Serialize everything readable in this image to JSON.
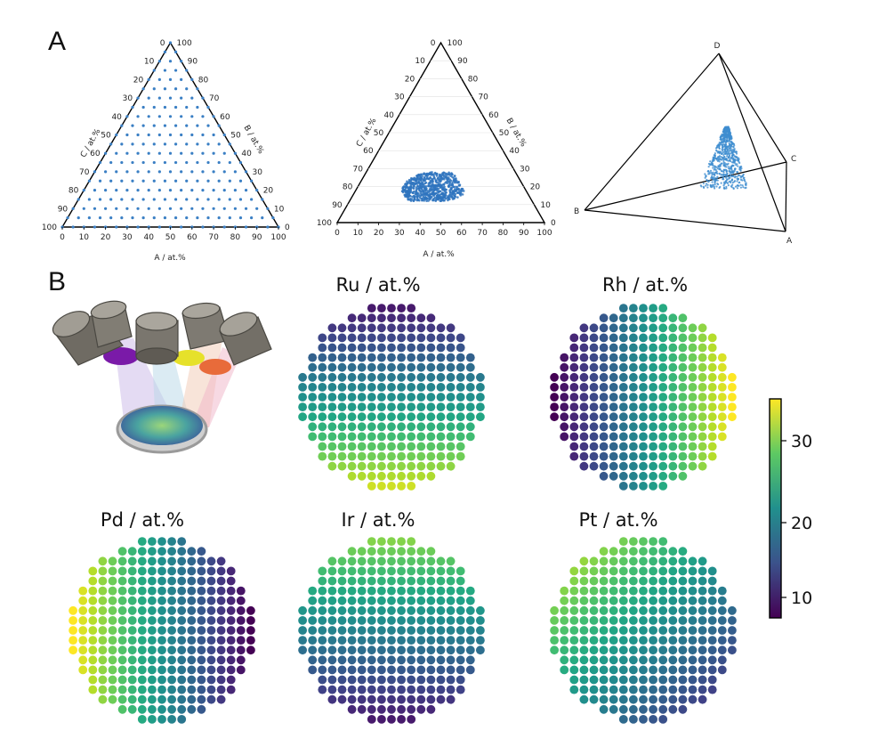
{
  "panels": {
    "a": "A",
    "b": "B"
  },
  "chart_data": [
    {
      "type": "scatter",
      "subtype": "ternary",
      "panel": "A",
      "axes": {
        "A": "A / at.%",
        "B": "B / at.%",
        "C": "C / at.%"
      },
      "ticks": [
        "0",
        "10",
        "20",
        "30",
        "40",
        "50",
        "60",
        "70",
        "80",
        "90",
        "100"
      ],
      "grid_step": 5,
      "marker_color": "#3a7fc4",
      "description_points": "full composition grid in 5 at.% steps"
    },
    {
      "type": "scatter",
      "subtype": "ternary",
      "panel": "A",
      "axes": {
        "A": "A / at.%",
        "B": "B / at.%",
        "C": "C / at.%"
      },
      "ticks": [
        "0",
        "10",
        "20",
        "30",
        "40",
        "50",
        "60",
        "70",
        "80",
        "90",
        "100"
      ],
      "marker_color": "#2f74be",
      "cluster": {
        "A_range": [
          22,
          55
        ],
        "B_range": [
          12,
          28
        ],
        "C_range": [
          30,
          60
        ]
      }
    },
    {
      "type": "scatter",
      "subtype": "tetrahedron",
      "panel": "A",
      "vertices": [
        "A",
        "B",
        "C",
        "D"
      ],
      "marker_color": "#3f8dd0"
    },
    {
      "type": "heatmap",
      "subtype": "wafer-map",
      "panel": "B",
      "colormap": "viridis",
      "colorbar": {
        "range": [
          8,
          35
        ],
        "ticks": [
          "10",
          "20",
          "30"
        ]
      },
      "maps": [
        {
          "title": "Ru / at.%",
          "gradient": "bottom-high",
          "min": 10,
          "max": 33
        },
        {
          "title": "Rh / at.%",
          "gradient": "right-high",
          "min": 8,
          "max": 35
        },
        {
          "title": "Pd / at.%",
          "gradient": "left-high",
          "min": 8,
          "max": 35
        },
        {
          "title": "Ir / at.%",
          "gradient": "top-high",
          "min": 10,
          "max": 30
        },
        {
          "title": "Pt / at.%",
          "gradient": "top-left-high",
          "min": 10,
          "max": 34
        }
      ]
    }
  ],
  "colors": {
    "ink": "#111111",
    "triangle_line": "#000000"
  }
}
